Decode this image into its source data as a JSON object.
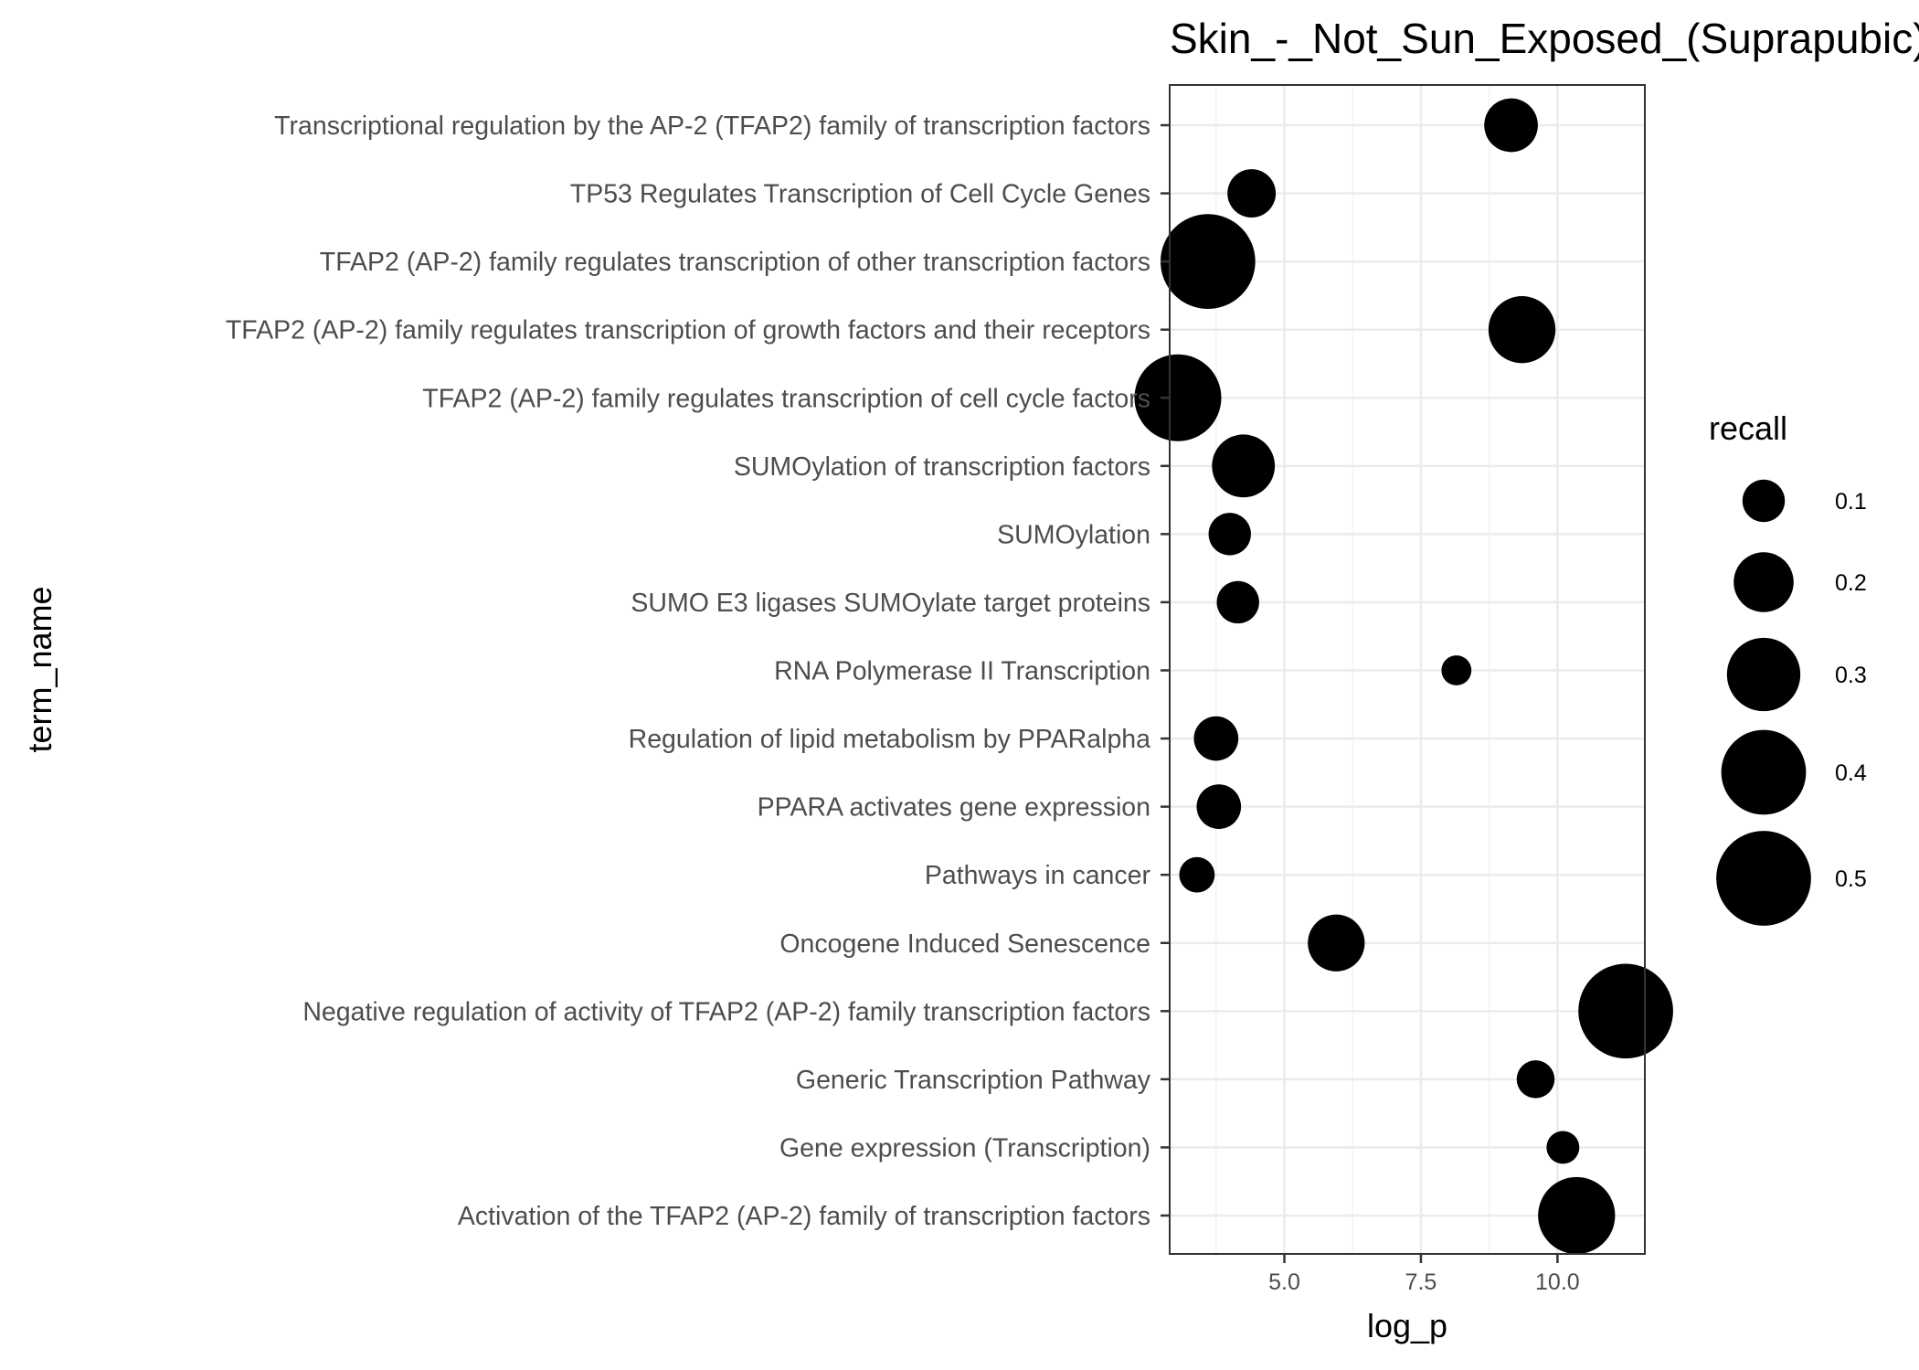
{
  "chart_data": {
    "type": "scatter",
    "title": "Skin_-_Not_Sun_Exposed_(Suprapubic)",
    "xlabel": "log_p",
    "ylabel": "term_name",
    "xlim": [
      2.9,
      11.6
    ],
    "x_ticks": [
      5.0,
      7.5,
      10.0
    ],
    "x_tick_labels": [
      "5.0",
      "7.5",
      "10.0"
    ],
    "grid": true,
    "point_color": "#000000",
    "terms": [
      "Transcriptional regulation by the AP-2 (TFAP2) family of transcription factors",
      "TP53 Regulates Transcription of Cell Cycle Genes",
      "TFAP2 (AP-2) family regulates transcription of other transcription factors",
      "TFAP2 (AP-2) family regulates transcription of growth factors and their receptors",
      "TFAP2 (AP-2) family regulates transcription of cell cycle factors",
      "SUMOylation of transcription factors",
      "SUMOylation",
      "SUMO E3 ligases SUMOylate target proteins",
      "RNA Polymerase II Transcription",
      "Regulation of lipid metabolism by PPARalpha",
      "PPARA activates gene expression",
      "Pathways in cancer",
      "Oncogene Induced Senescence",
      "Negative regulation of activity of TFAP2 (AP-2) family transcription factors",
      "Generic Transcription Pathway",
      "Gene expression (Transcription)",
      "Activation of the TFAP2 (AP-2) family of transcription factors"
    ],
    "log_p": [
      9.15,
      4.4,
      3.6,
      9.35,
      3.05,
      4.25,
      4.0,
      4.15,
      8.15,
      3.75,
      3.8,
      3.4,
      5.95,
      11.25,
      9.6,
      10.1,
      10.35
    ],
    "recall": [
      0.16,
      0.13,
      0.5,
      0.25,
      0.42,
      0.22,
      0.1,
      0.1,
      0.05,
      0.11,
      0.11,
      0.07,
      0.18,
      0.5,
      0.08,
      0.06,
      0.33
    ],
    "legend": {
      "title": "recall",
      "placement": "right",
      "values": [
        0.1,
        0.2,
        0.3,
        0.4,
        0.5
      ],
      "labels": [
        "0.1",
        "0.2",
        "0.3",
        "0.4",
        "0.5"
      ]
    }
  }
}
